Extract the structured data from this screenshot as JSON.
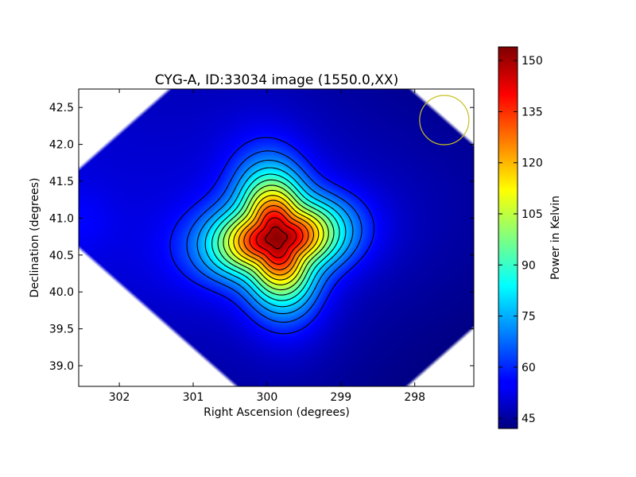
{
  "chart_data": {
    "type": "heatmap",
    "title": "CYG-A, ID:33034 image (1550.0,XX)",
    "xlabel": "Right Ascension (degrees)",
    "ylabel": "Declination (degrees)",
    "xlim": [
      302.55,
      297.2
    ],
    "ylim": [
      38.72,
      42.75
    ],
    "x_inverted": true,
    "xticks": [
      302,
      301,
      300,
      299,
      298
    ],
    "xtick_labels": [
      "302",
      "301",
      "300",
      "299",
      "298"
    ],
    "yticks": [
      39.0,
      39.5,
      40.0,
      40.5,
      41.0,
      41.5,
      42.0,
      42.5
    ],
    "ytick_labels": [
      "39.0",
      "39.5",
      "40.0",
      "40.5",
      "41.0",
      "41.5",
      "42.0",
      "42.5"
    ],
    "colormap": "jet",
    "colorbar": {
      "label": "Power in Kelvin",
      "range": [
        42,
        154
      ],
      "ticks": [
        45,
        60,
        75,
        90,
        105,
        120,
        135,
        150
      ],
      "tick_labels": [
        "45",
        "60",
        "75",
        "90",
        "105",
        "120",
        "135",
        "150"
      ]
    },
    "peak": {
      "x": 299.87,
      "y": 40.73,
      "value": 154
    },
    "background_level": 50,
    "contour_step": 7,
    "beam_circle": {
      "x": 297.6,
      "y": 42.33,
      "color": "#c8c020"
    },
    "grid": false
  }
}
